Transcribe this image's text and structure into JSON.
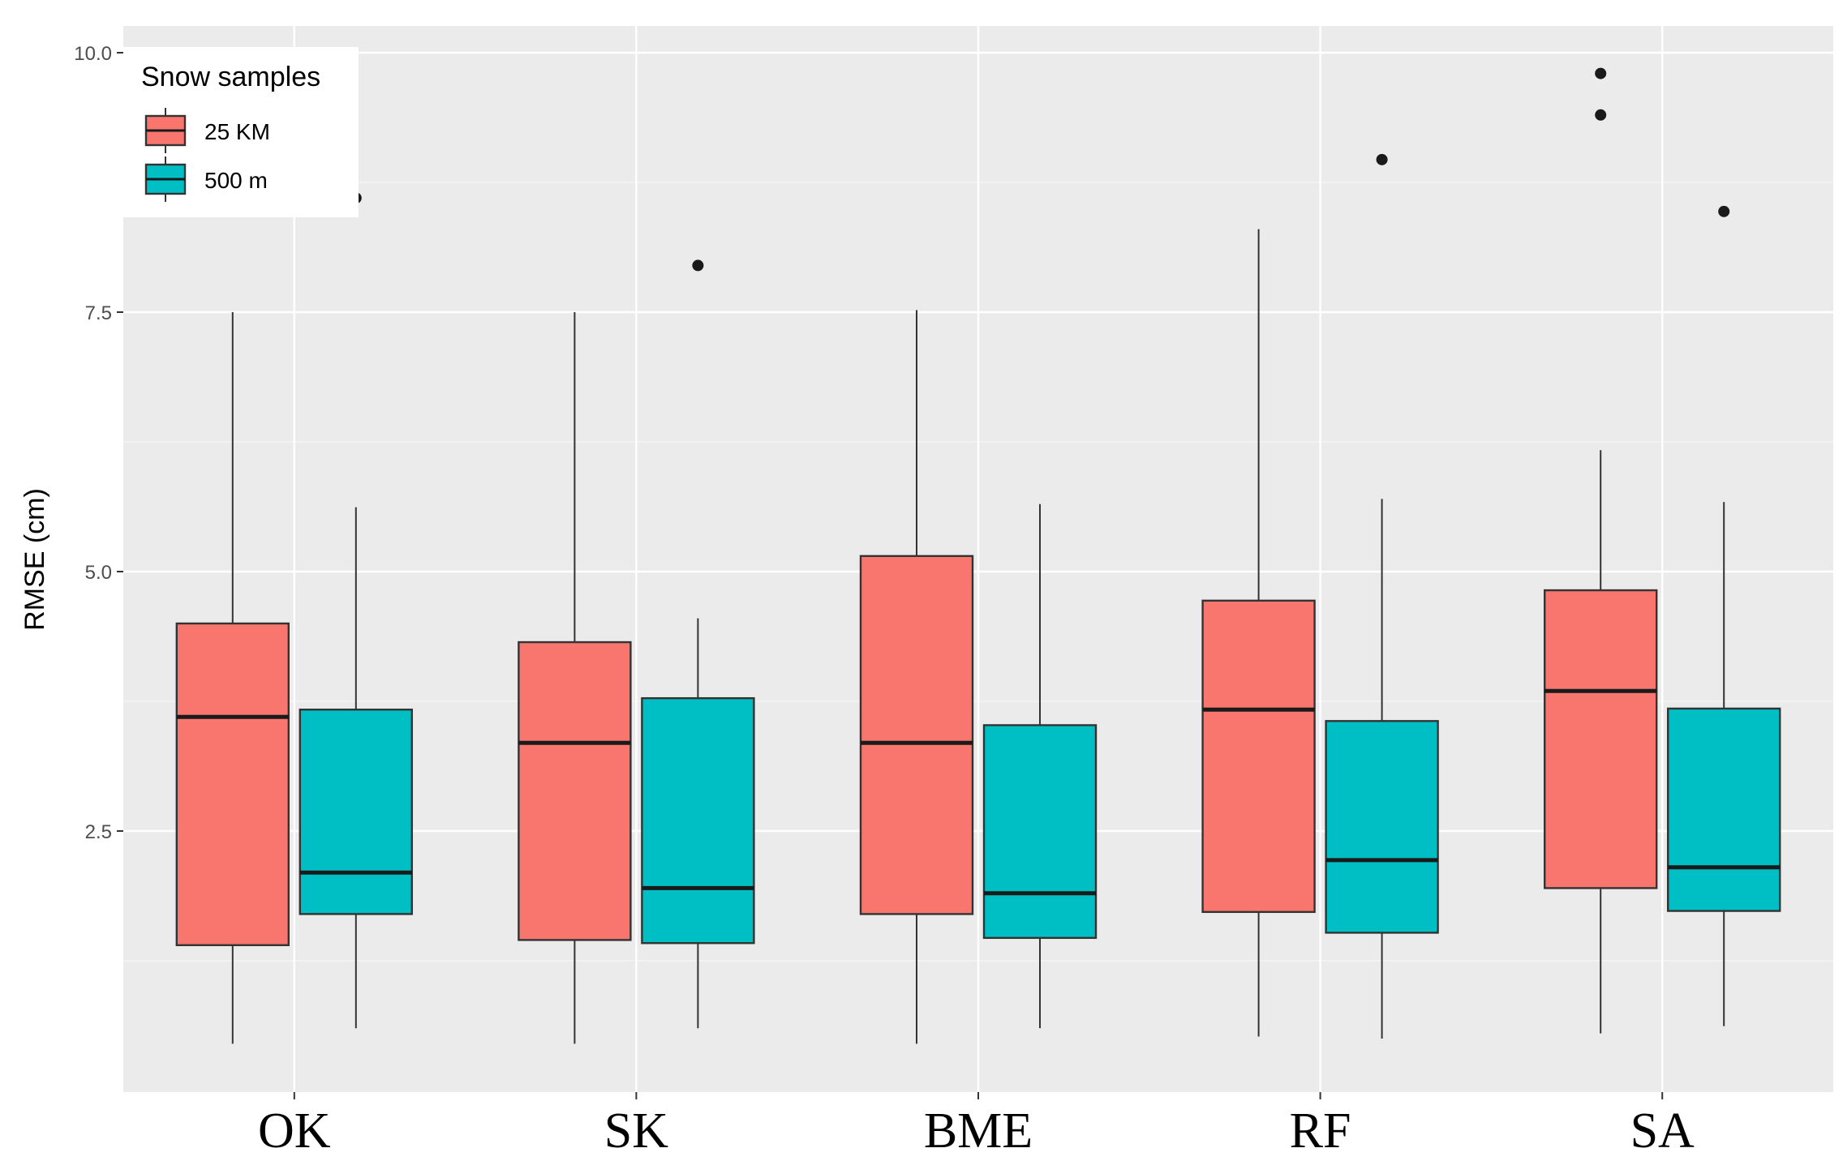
{
  "chart_data": {
    "type": "boxplot",
    "title": "",
    "xlabel": "",
    "ylabel": "RMSE (cm)",
    "ylim": [
      0,
      10.25
    ],
    "yticks": [
      2.5,
      5.0,
      7.5,
      10.0
    ],
    "ytick_labels": [
      "2.5",
      "5.0",
      "7.5",
      "10.0"
    ],
    "grid": true,
    "legend_position": "top-left",
    "categories": [
      "OK",
      "SK",
      "BME",
      "RF",
      "SA"
    ],
    "legend": {
      "title": "Snow samples",
      "entries": [
        "25 KM",
        "500 m"
      ]
    },
    "series": [
      {
        "name": "25 KM",
        "color": "#F8766D",
        "boxes": [
          {
            "category": "OK",
            "whisker_low": 0.45,
            "q1": 1.4,
            "median": 3.6,
            "q3": 4.5,
            "whisker_high": 7.5,
            "outliers": []
          },
          {
            "category": "SK",
            "whisker_low": 0.45,
            "q1": 1.45,
            "median": 3.35,
            "q3": 4.32,
            "whisker_high": 7.5,
            "outliers": []
          },
          {
            "category": "BME",
            "whisker_low": 0.45,
            "q1": 1.7,
            "median": 3.35,
            "q3": 5.15,
            "whisker_high": 7.52,
            "outliers": []
          },
          {
            "category": "RF",
            "whisker_low": 0.52,
            "q1": 1.72,
            "median": 3.67,
            "q3": 4.72,
            "whisker_high": 8.3,
            "outliers": []
          },
          {
            "category": "SA",
            "whisker_low": 0.55,
            "q1": 1.95,
            "median": 3.85,
            "q3": 4.82,
            "whisker_high": 6.17,
            "outliers": [
              9.8,
              9.4
            ]
          }
        ]
      },
      {
        "name": "500 m",
        "color": "#00BFC4",
        "boxes": [
          {
            "category": "OK",
            "whisker_low": 0.6,
            "q1": 1.7,
            "median": 2.1,
            "q3": 3.67,
            "whisker_high": 5.62,
            "outliers": [
              8.6
            ]
          },
          {
            "category": "SK",
            "whisker_low": 0.6,
            "q1": 1.42,
            "median": 1.95,
            "q3": 3.78,
            "whisker_high": 4.55,
            "outliers": [
              7.95
            ]
          },
          {
            "category": "BME",
            "whisker_low": 0.6,
            "q1": 1.47,
            "median": 1.9,
            "q3": 3.52,
            "whisker_high": 5.65,
            "outliers": []
          },
          {
            "category": "RF",
            "whisker_low": 0.5,
            "q1": 1.52,
            "median": 2.22,
            "q3": 3.56,
            "whisker_high": 5.7,
            "outliers": [
              8.97
            ]
          },
          {
            "category": "SA",
            "whisker_low": 0.62,
            "q1": 1.73,
            "median": 2.15,
            "q3": 3.68,
            "whisker_high": 5.67,
            "outliers": [
              8.47
            ]
          }
        ]
      }
    ]
  },
  "colors": {
    "panel_background": "#EBEBEB",
    "grid_major": "#FFFFFF",
    "box_outline": "#333333",
    "median_line": "#1a1a1a",
    "outlier": "#1a1a1a"
  }
}
